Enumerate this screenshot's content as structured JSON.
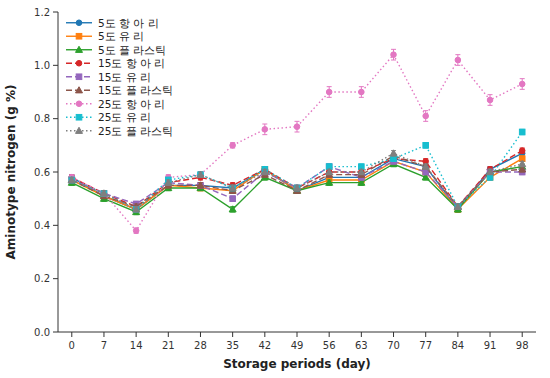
{
  "chart_data": {
    "type": "line",
    "xlabel": "Storage periods (day)",
    "ylabel": "Aminotype nitrogen (g %)",
    "x": [
      0,
      7,
      14,
      21,
      28,
      35,
      42,
      49,
      56,
      63,
      70,
      77,
      84,
      91,
      98
    ],
    "series": [
      {
        "name": "5도 항 아 리",
        "marker": "circle",
        "line_style": "solid",
        "values": [
          0.58,
          0.51,
          0.46,
          0.55,
          0.55,
          0.54,
          0.61,
          0.53,
          0.58,
          0.58,
          0.65,
          0.62,
          0.46,
          0.61,
          0.67
        ],
        "errors": [
          0.01,
          0.01,
          0.01,
          0.01,
          0.01,
          0.01,
          0.01,
          0.01,
          0.01,
          0.01,
          0.01,
          0.01,
          0.01,
          0.01,
          0.01
        ]
      },
      {
        "name": "5도 유 리",
        "marker": "square",
        "line_style": "solid",
        "values": [
          0.57,
          0.51,
          0.46,
          0.55,
          0.54,
          0.53,
          0.61,
          0.53,
          0.57,
          0.57,
          0.64,
          0.6,
          0.46,
          0.58,
          0.65
        ],
        "errors": [
          0.01,
          0.01,
          0.01,
          0.01,
          0.01,
          0.01,
          0.01,
          0.01,
          0.01,
          0.01,
          0.01,
          0.01,
          0.01,
          0.01,
          0.01
        ]
      },
      {
        "name": "5도 플 라스틱",
        "marker": "triangle",
        "line_style": "solid",
        "values": [
          0.56,
          0.5,
          0.45,
          0.54,
          0.54,
          0.46,
          0.58,
          0.53,
          0.56,
          0.56,
          0.63,
          0.58,
          0.46,
          0.6,
          0.62
        ],
        "errors": [
          0.01,
          0.01,
          0.01,
          0.01,
          0.01,
          0.01,
          0.01,
          0.01,
          0.01,
          0.01,
          0.01,
          0.01,
          0.01,
          0.01,
          0.01
        ]
      },
      {
        "name": "15도 항 아 리",
        "marker": "circle",
        "line_style": "dashed",
        "values": [
          0.58,
          0.52,
          0.47,
          0.56,
          0.58,
          0.55,
          0.61,
          0.54,
          0.6,
          0.6,
          0.65,
          0.64,
          0.47,
          0.61,
          0.68
        ],
        "errors": [
          0.01,
          0.01,
          0.01,
          0.01,
          0.01,
          0.01,
          0.01,
          0.01,
          0.01,
          0.01,
          0.01,
          0.01,
          0.01,
          0.01,
          0.01
        ]
      },
      {
        "name": "15도 유 리",
        "marker": "square",
        "line_style": "dashed",
        "values": [
          0.57,
          0.52,
          0.48,
          0.56,
          0.55,
          0.5,
          0.6,
          0.54,
          0.62,
          0.58,
          0.64,
          0.6,
          0.47,
          0.6,
          0.6
        ],
        "errors": [
          0.01,
          0.01,
          0.01,
          0.01,
          0.01,
          0.01,
          0.01,
          0.01,
          0.01,
          0.01,
          0.01,
          0.01,
          0.01,
          0.01,
          0.01
        ]
      },
      {
        "name": "15도 플 라스틱",
        "marker": "triangle",
        "line_style": "dashed",
        "values": [
          0.57,
          0.51,
          0.47,
          0.55,
          0.55,
          0.53,
          0.59,
          0.53,
          0.59,
          0.59,
          0.66,
          0.62,
          0.47,
          0.6,
          0.61
        ],
        "errors": [
          0.01,
          0.01,
          0.01,
          0.01,
          0.01,
          0.01,
          0.01,
          0.01,
          0.01,
          0.01,
          0.01,
          0.01,
          0.01,
          0.01,
          0.01
        ]
      },
      {
        "name": "25도 항 아 리",
        "marker": "circle",
        "line_style": "dotted",
        "values": [
          0.58,
          0.52,
          0.38,
          0.58,
          0.59,
          0.7,
          0.76,
          0.77,
          0.9,
          0.9,
          1.04,
          0.81,
          1.02,
          0.87,
          0.93
        ],
        "errors": [
          0.01,
          0.01,
          0.01,
          0.01,
          0.01,
          0.01,
          0.02,
          0.02,
          0.02,
          0.02,
          0.02,
          0.02,
          0.02,
          0.02,
          0.02
        ]
      },
      {
        "name": "25도 유 리",
        "marker": "square",
        "line_style": "dotted",
        "values": [
          0.57,
          0.52,
          0.46,
          0.57,
          0.59,
          0.54,
          0.61,
          0.54,
          0.62,
          0.62,
          0.65,
          0.7,
          0.47,
          0.58,
          0.75
        ],
        "errors": [
          0.01,
          0.01,
          0.01,
          0.01,
          0.01,
          0.01,
          0.01,
          0.01,
          0.01,
          0.01,
          0.01,
          0.01,
          0.01,
          0.01,
          0.01
        ]
      },
      {
        "name": "25도 플 라스틱",
        "marker": "triangle",
        "line_style": "dotted",
        "values": [
          0.57,
          0.52,
          0.46,
          0.56,
          0.59,
          0.54,
          0.6,
          0.54,
          0.6,
          0.6,
          0.67,
          0.62,
          0.47,
          0.6,
          0.63
        ],
        "errors": [
          0.01,
          0.01,
          0.01,
          0.01,
          0.01,
          0.01,
          0.01,
          0.01,
          0.01,
          0.01,
          0.01,
          0.01,
          0.01,
          0.01,
          0.01
        ]
      }
    ],
    "xlim": [
      -3,
      101
    ],
    "ylim": [
      0.0,
      1.2
    ],
    "xticks": [
      0,
      7,
      14,
      21,
      28,
      35,
      42,
      49,
      56,
      63,
      70,
      77,
      84,
      91,
      98
    ],
    "yticks": [
      {
        "value": 0.0,
        "label": "0.0"
      },
      0.2,
      0.4,
      0.6,
      0.8,
      {
        "value": 1.0,
        "label": "1.0"
      },
      1.2
    ],
    "grid": false,
    "legend": "upper left"
  }
}
